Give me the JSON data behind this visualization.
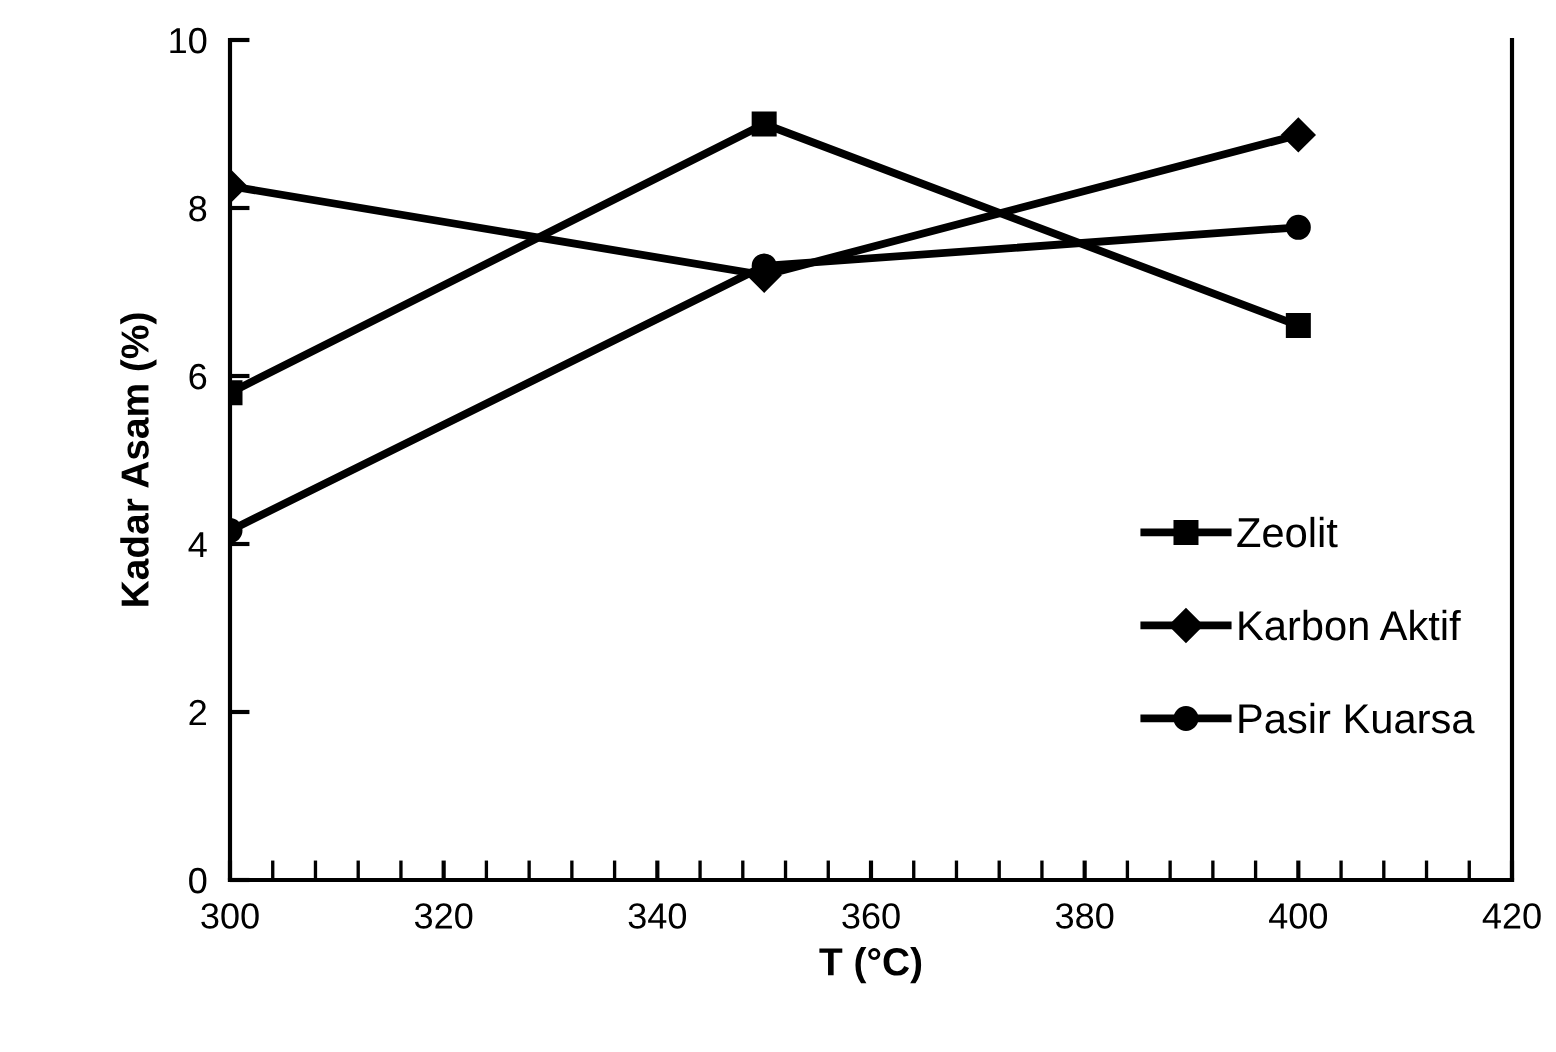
{
  "chart_data": {
    "type": "line",
    "xlabel": "T (°C)",
    "ylabel": "Kadar Asam (%)",
    "x": [
      300,
      350,
      400
    ],
    "series": [
      {
        "name": "Zeolit",
        "color": "#000000",
        "marker": "square",
        "values": [
          5.8,
          9.0,
          6.6
        ]
      },
      {
        "name": "Karbon Aktif",
        "color": "#000000",
        "marker": "diamond",
        "values": [
          8.26,
          7.2,
          8.87
        ]
      },
      {
        "name": "Pasir Kuarsa",
        "color": "#000000",
        "marker": "circle",
        "values": [
          4.16,
          7.31,
          7.77
        ]
      }
    ],
    "xlim": [
      300,
      420
    ],
    "xticks": [
      300,
      320,
      340,
      360,
      380,
      400,
      420
    ],
    "ylim": [
      0,
      10
    ],
    "yticks": [
      0,
      2,
      4,
      6,
      8,
      10
    ],
    "grid": false,
    "legend": "bottom right",
    "line_style": "solid"
  }
}
